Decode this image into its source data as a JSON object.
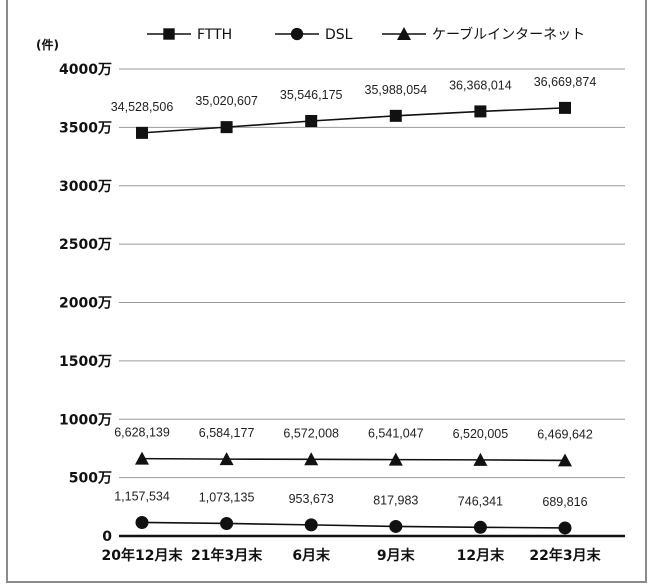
{
  "chart_data": {
    "type": "line",
    "unit_label": "(件)",
    "categories": [
      "20年12月末",
      "21年3月末",
      "6月末",
      "9月末",
      "12月末",
      "22年3月末"
    ],
    "series": [
      {
        "name": "FTTH",
        "marker": "square",
        "values": [
          34528506,
          35020607,
          35546175,
          35988054,
          36368014,
          36669874
        ],
        "labels": [
          "34,528,506",
          "35,020,607",
          "35,546,175",
          "35,988,054",
          "36,368,014",
          "36,669,874"
        ]
      },
      {
        "name": "DSL",
        "marker": "circle",
        "values": [
          1157534,
          1073135,
          953673,
          817983,
          746341,
          689816
        ],
        "labels": [
          "1,157,534",
          "1,073,135",
          "953,673",
          "817,983",
          "746,341",
          "689,816"
        ]
      },
      {
        "name": "ケーブルインターネット",
        "marker": "triangle",
        "values": [
          6628139,
          6584177,
          6572008,
          6541047,
          6520005,
          6469642
        ],
        "labels": [
          "6,628,139",
          "6,584,177",
          "6,572,008",
          "6,541,047",
          "6,520,005",
          "6,469,642"
        ]
      }
    ],
    "yticks": [
      {
        "value": 0,
        "label": "0"
      },
      {
        "value": 5000000,
        "label": "500万"
      },
      {
        "value": 10000000,
        "label": "1000万"
      },
      {
        "value": 15000000,
        "label": "1500万"
      },
      {
        "value": 20000000,
        "label": "2000万"
      },
      {
        "value": 25000000,
        "label": "2500万"
      },
      {
        "value": 30000000,
        "label": "3000万"
      },
      {
        "value": 35000000,
        "label": "3500万"
      },
      {
        "value": 40000000,
        "label": "4000万"
      }
    ],
    "ylim": [
      0,
      40000000
    ],
    "grid": true,
    "legend_position": "top",
    "line_color": "#111111"
  }
}
